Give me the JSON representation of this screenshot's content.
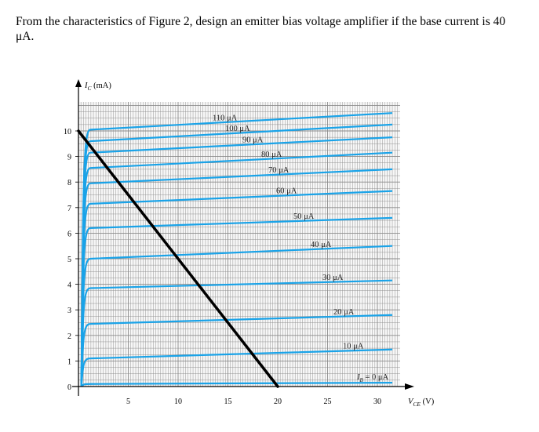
{
  "question": {
    "text": "From the characteristics of Figure 2, design an emitter bias voltage amplifier if the base current is 40 μA."
  },
  "colors": {
    "curve": "#1aa3e8",
    "grid": "#8a8a8a",
    "load_line": "#000000",
    "plot_bg": "#f7f7f7"
  },
  "chart_data": {
    "type": "line",
    "title": "",
    "xlabel": "V_CE (V)",
    "ylabel": "I_C (mA)",
    "xlim": [
      0,
      33
    ],
    "ylim": [
      0,
      11.5
    ],
    "x_ticks": [
      5,
      10,
      15,
      20,
      25,
      30
    ],
    "y_ticks": [
      0,
      1,
      2,
      3,
      4,
      5,
      6,
      7,
      8,
      9,
      10
    ],
    "grid": true,
    "series": [
      {
        "name": "I_B = 0 μA",
        "label": "= 0 μA",
        "ib_uA": 0,
        "sat_mA": 0.1,
        "end_mA": 0.15
      },
      {
        "name": "10 μA",
        "label": "10 μA",
        "ib_uA": 10,
        "sat_mA": 1.1,
        "end_mA": 1.45
      },
      {
        "name": "20 μA",
        "label": "20 μA",
        "ib_uA": 20,
        "sat_mA": 2.45,
        "end_mA": 2.8
      },
      {
        "name": "30 μA",
        "label": "30 μA",
        "ib_uA": 30,
        "sat_mA": 3.85,
        "end_mA": 4.15
      },
      {
        "name": "40 μA",
        "label": "40 μA",
        "ib_uA": 40,
        "sat_mA": 5.0,
        "end_mA": 5.5
      },
      {
        "name": "50 μA",
        "label": "50 μA",
        "ib_uA": 50,
        "sat_mA": 6.2,
        "end_mA": 6.6
      },
      {
        "name": "60 μA",
        "label": "60 μA",
        "ib_uA": 60,
        "sat_mA": 7.15,
        "end_mA": 7.65
      },
      {
        "name": "70 μA",
        "label": "70 μA",
        "ib_uA": 70,
        "sat_mA": 7.95,
        "end_mA": 8.5
      },
      {
        "name": "80 μA",
        "label": "80 μA",
        "ib_uA": 80,
        "sat_mA": 8.55,
        "end_mA": 9.15
      },
      {
        "name": "90 μA",
        "label": "90 μA",
        "ib_uA": 90,
        "sat_mA": 9.15,
        "end_mA": 9.75
      },
      {
        "name": "100 μA",
        "label": "100 μA",
        "ib_uA": 100,
        "sat_mA": 9.6,
        "end_mA": 10.25
      },
      {
        "name": "110 μA",
        "label": "110 μA",
        "ib_uA": 110,
        "sat_mA": 10.05,
        "end_mA": 10.7
      }
    ],
    "load_line": {
      "x": [
        0,
        20
      ],
      "y": [
        10,
        0
      ]
    }
  }
}
